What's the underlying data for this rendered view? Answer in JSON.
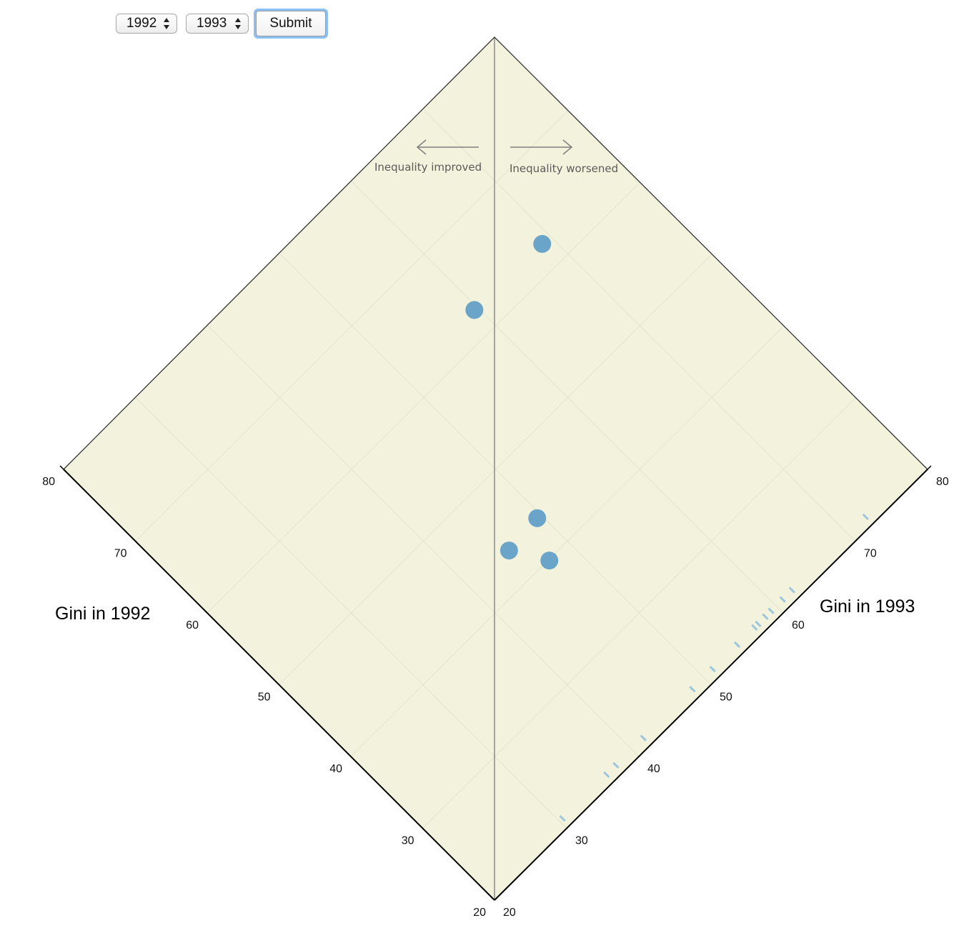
{
  "controls": {
    "year_a": "1992",
    "year_b": "1993",
    "submit_label": "Submit"
  },
  "colors": {
    "background": "#f3f3dd",
    "point": "#6aa5c9",
    "rug": "#9cc6de",
    "axis": "#333333",
    "divider": "#8a8a8a",
    "grid": "#e3e3cf"
  },
  "chart_data": {
    "type": "scatter",
    "orientation": "diamond (rotated 45°)",
    "left_axis": {
      "title": "Gini in 1992",
      "range": [
        20,
        80
      ],
      "ticks": [
        20,
        30,
        40,
        50,
        60,
        70,
        80
      ]
    },
    "right_axis": {
      "title": "Gini in 1993",
      "range": [
        20,
        80
      ],
      "ticks": [
        20,
        30,
        40,
        50,
        60,
        70,
        80
      ]
    },
    "annotations": {
      "left": "Inequality improved",
      "right": "Inequality worsened"
    },
    "points": [
      {
        "gini_1992": 62.5,
        "gini_1993": 68.9
      },
      {
        "gini_1992": 62.6,
        "gini_1993": 59.6
      },
      {
        "gini_1992": 43.7,
        "gini_1993": 49.5
      },
      {
        "gini_1992": 43.4,
        "gini_1993": 45.3
      },
      {
        "gini_1992": 39.9,
        "gini_1993": 47.4
      }
    ],
    "right_axis_rug": [
      30.4,
      36.5,
      37.8,
      41.6,
      48.4,
      51.2,
      54.6,
      57.0,
      57.5,
      58.5,
      59.3,
      60.9,
      62.2,
      72.4
    ]
  }
}
